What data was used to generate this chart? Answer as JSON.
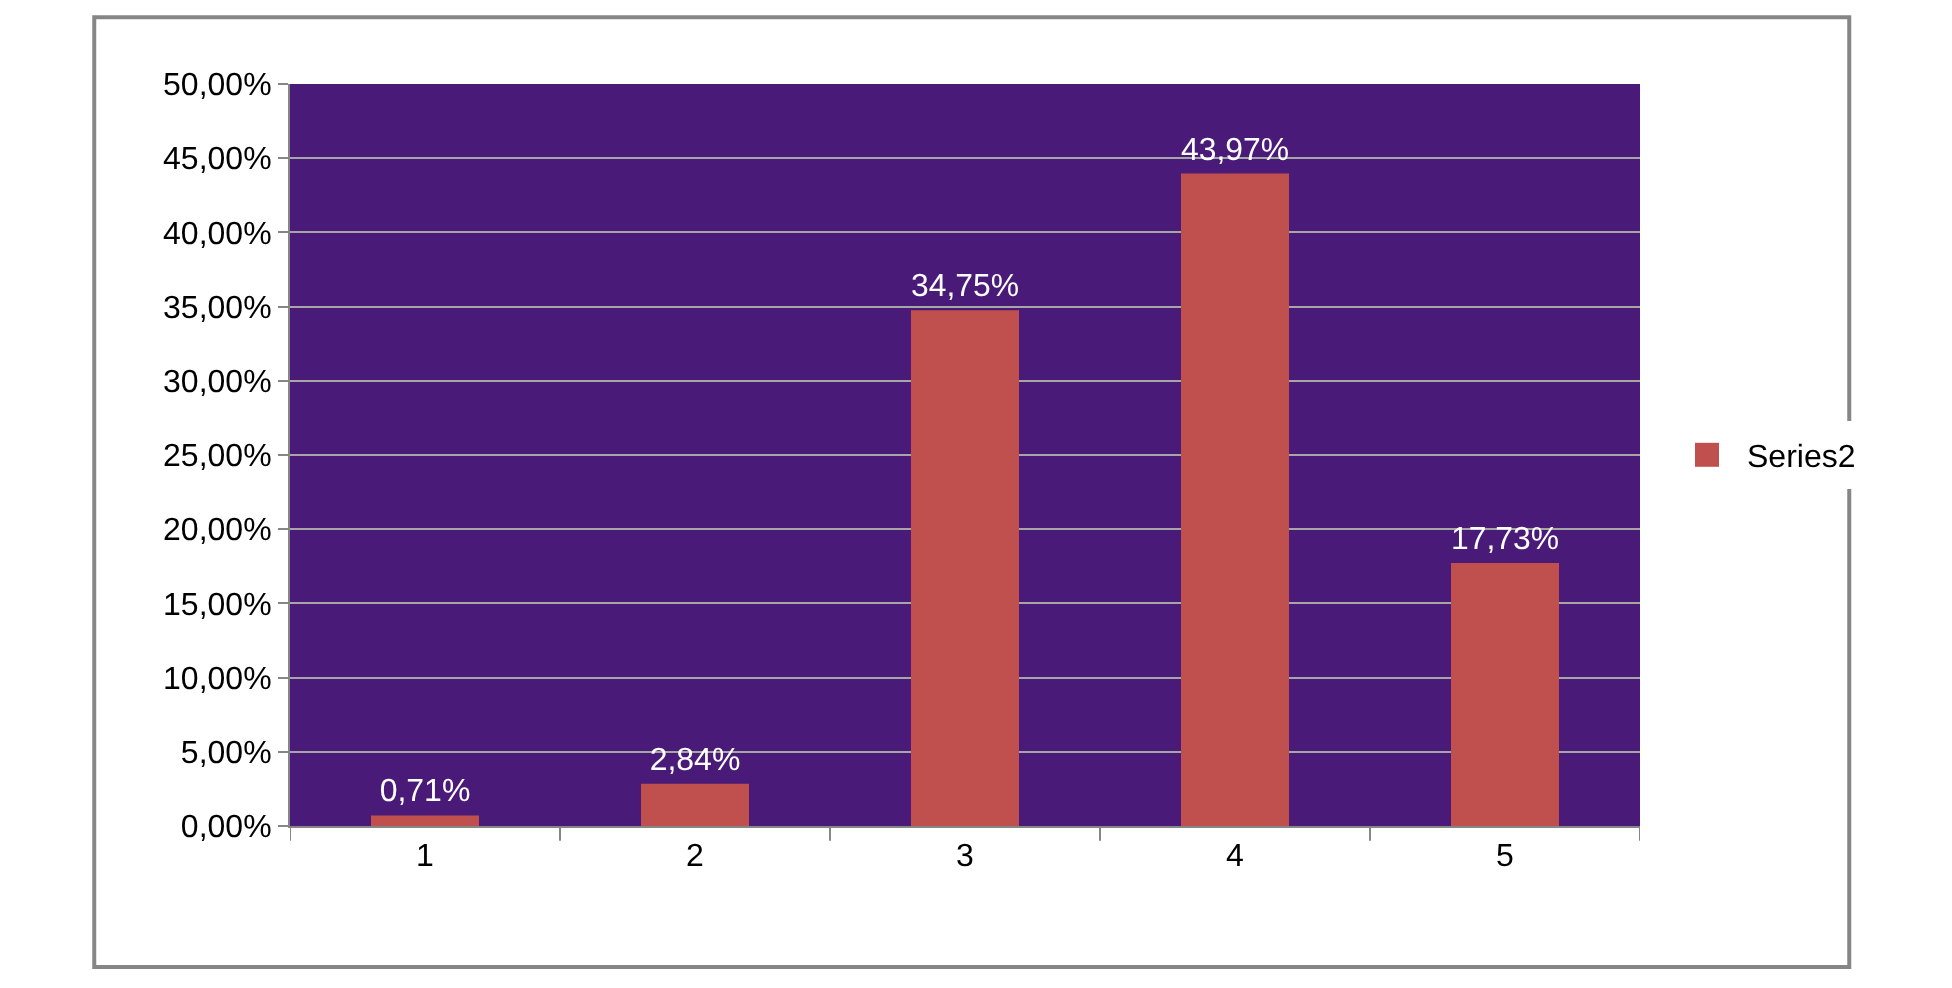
{
  "chart_data": {
    "type": "bar",
    "categories": [
      "1",
      "2",
      "3",
      "4",
      "5"
    ],
    "series": [
      {
        "name": "Series2",
        "color": "#c0504d",
        "values": [
          0.71,
          2.84,
          34.75,
          43.97,
          17.73
        ],
        "value_labels": [
          "0,71%",
          "2,84%",
          "34,75%",
          "43,97%",
          "17,73%"
        ]
      }
    ],
    "ylim": [
      0,
      50
    ],
    "yticks": [
      {
        "value": 0,
        "label": "0,00%"
      },
      {
        "value": 5,
        "label": "5,00%"
      },
      {
        "value": 10,
        "label": "10,00%"
      },
      {
        "value": 15,
        "label": "15,00%"
      },
      {
        "value": 20,
        "label": "20,00%"
      },
      {
        "value": 25,
        "label": "25,00%"
      },
      {
        "value": 30,
        "label": "30,00%"
      },
      {
        "value": 35,
        "label": "35,00%"
      },
      {
        "value": 40,
        "label": "40,00%"
      },
      {
        "value": 45,
        "label": "45,00%"
      },
      {
        "value": 50,
        "label": "50,00%"
      }
    ],
    "grid": "y",
    "legend": "right"
  }
}
